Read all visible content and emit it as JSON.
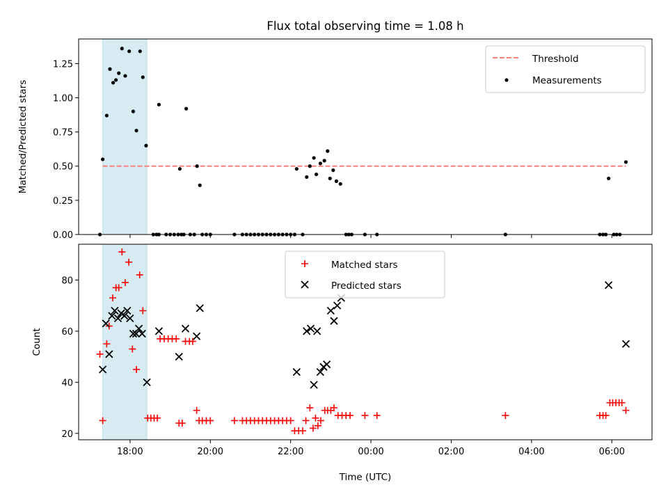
{
  "figure": {
    "title": "Flux total observing time = 1.08 h",
    "x_label": "Time (UTC)",
    "x_ticks": [
      {
        "value": 18,
        "label": "18:00"
      },
      {
        "value": 20,
        "label": "20:00"
      },
      {
        "value": 22,
        "label": "22:00"
      },
      {
        "value": 24,
        "label": "00:00"
      },
      {
        "value": 26,
        "label": "02:00"
      },
      {
        "value": 28,
        "label": "04:00"
      },
      {
        "value": 30,
        "label": "06:00"
      }
    ],
    "xlim": [
      16.72,
      31.0
    ],
    "highlight_span": [
      17.32,
      18.42
    ],
    "colors": {
      "highlight": "#add8e6",
      "threshold": "#ff7f7f",
      "measurements": "#000000",
      "matched": "#ff0000",
      "predicted": "#000000"
    }
  },
  "chart_data": [
    {
      "type": "scatter",
      "ylabel": "Matched/Predicted stars",
      "ylim": [
        0,
        1.43
      ],
      "y_ticks": [
        "0.00",
        "0.25",
        "0.50",
        "0.75",
        "1.00",
        "1.25"
      ],
      "legend_placement": "top-right",
      "threshold": {
        "name": "Threshold",
        "y": 0.5,
        "x_range": [
          17.32,
          30.35
        ]
      },
      "series": [
        {
          "name": "Measurements",
          "points": [
            [
              17.32,
              0.55
            ],
            [
              17.42,
              0.87
            ],
            [
              17.5,
              1.21
            ],
            [
              17.58,
              1.11
            ],
            [
              17.65,
              1.13
            ],
            [
              17.72,
              1.18
            ],
            [
              17.8,
              1.36
            ],
            [
              17.88,
              1.16
            ],
            [
              17.98,
              1.34
            ],
            [
              18.08,
              0.9
            ],
            [
              18.16,
              0.76
            ],
            [
              18.25,
              1.34
            ],
            [
              18.32,
              1.15
            ],
            [
              18.4,
              0.65
            ],
            [
              18.72,
              0.95
            ],
            [
              19.24,
              0.48
            ],
            [
              19.4,
              0.92
            ],
            [
              19.67,
              0.5
            ],
            [
              19.74,
              0.36
            ],
            [
              22.15,
              0.48
            ],
            [
              22.4,
              0.42
            ],
            [
              22.48,
              0.5
            ],
            [
              22.58,
              0.56
            ],
            [
              22.64,
              0.44
            ],
            [
              22.74,
              0.52
            ],
            [
              22.84,
              0.54
            ],
            [
              22.92,
              0.61
            ],
            [
              22.98,
              0.41
            ],
            [
              23.06,
              0.47
            ],
            [
              23.14,
              0.39
            ],
            [
              23.24,
              0.37
            ],
            [
              29.92,
              0.41
            ],
            [
              30.35,
              0.53
            ],
            [
              17.25,
              0
            ],
            [
              18.58,
              0
            ],
            [
              18.66,
              0
            ],
            [
              18.72,
              0
            ],
            [
              18.9,
              0
            ],
            [
              19.0,
              0
            ],
            [
              19.1,
              0
            ],
            [
              19.2,
              0
            ],
            [
              19.28,
              0
            ],
            [
              19.34,
              0
            ],
            [
              19.5,
              0
            ],
            [
              19.6,
              0
            ],
            [
              19.8,
              0
            ],
            [
              19.9,
              0
            ],
            [
              20.0,
              0
            ],
            [
              20.6,
              0
            ],
            [
              20.8,
              0
            ],
            [
              20.9,
              0
            ],
            [
              21.0,
              0
            ],
            [
              21.1,
              0
            ],
            [
              21.2,
              0
            ],
            [
              21.3,
              0
            ],
            [
              21.4,
              0
            ],
            [
              21.5,
              0
            ],
            [
              21.6,
              0
            ],
            [
              21.7,
              0
            ],
            [
              21.8,
              0
            ],
            [
              21.9,
              0
            ],
            [
              22.0,
              0
            ],
            [
              22.1,
              0
            ],
            [
              22.3,
              0
            ],
            [
              23.38,
              0
            ],
            [
              23.45,
              0
            ],
            [
              23.52,
              0
            ],
            [
              23.85,
              0
            ],
            [
              24.15,
              0
            ],
            [
              27.35,
              0
            ],
            [
              29.7,
              0
            ],
            [
              29.78,
              0
            ],
            [
              29.85,
              0
            ],
            [
              30.05,
              0
            ],
            [
              30.12,
              0
            ],
            [
              30.2,
              0
            ]
          ]
        }
      ]
    },
    {
      "type": "scatter",
      "ylabel": "Count",
      "ylim": [
        17.5,
        94
      ],
      "y_ticks": [
        "20",
        "40",
        "60",
        "80"
      ],
      "legend_placement": "top-center",
      "series": [
        {
          "name": "Matched stars",
          "marker": "plus",
          "points": [
            [
              17.25,
              51
            ],
            [
              17.32,
              25
            ],
            [
              17.42,
              55
            ],
            [
              17.48,
              62
            ],
            [
              17.57,
              73
            ],
            [
              17.65,
              77
            ],
            [
              17.72,
              77
            ],
            [
              17.8,
              91
            ],
            [
              17.88,
              79
            ],
            [
              17.97,
              87
            ],
            [
              18.06,
              53
            ],
            [
              18.16,
              45
            ],
            [
              18.24,
              82
            ],
            [
              18.32,
              68
            ],
            [
              18.44,
              26
            ],
            [
              18.52,
              26
            ],
            [
              18.6,
              26
            ],
            [
              18.68,
              26
            ],
            [
              18.75,
              57
            ],
            [
              18.85,
              57
            ],
            [
              18.95,
              57
            ],
            [
              19.05,
              57
            ],
            [
              19.15,
              57
            ],
            [
              19.22,
              24
            ],
            [
              19.3,
              24
            ],
            [
              19.38,
              56
            ],
            [
              19.48,
              56
            ],
            [
              19.56,
              56
            ],
            [
              19.66,
              29
            ],
            [
              19.72,
              25
            ],
            [
              19.8,
              25
            ],
            [
              19.9,
              25
            ],
            [
              20.0,
              25
            ],
            [
              20.6,
              25
            ],
            [
              20.8,
              25
            ],
            [
              20.9,
              25
            ],
            [
              21.0,
              25
            ],
            [
              21.1,
              25
            ],
            [
              21.2,
              25
            ],
            [
              21.3,
              25
            ],
            [
              21.4,
              25
            ],
            [
              21.5,
              25
            ],
            [
              21.6,
              25
            ],
            [
              21.7,
              25
            ],
            [
              21.8,
              25
            ],
            [
              21.9,
              25
            ],
            [
              22.0,
              25
            ],
            [
              22.1,
              21
            ],
            [
              22.2,
              21
            ],
            [
              22.3,
              21
            ],
            [
              22.38,
              25
            ],
            [
              22.48,
              30
            ],
            [
              22.56,
              22
            ],
            [
              22.62,
              26
            ],
            [
              22.68,
              23
            ],
            [
              22.75,
              25
            ],
            [
              22.85,
              29
            ],
            [
              22.92,
              29
            ],
            [
              23.0,
              29
            ],
            [
              23.08,
              30
            ],
            [
              23.18,
              27
            ],
            [
              23.28,
              27
            ],
            [
              23.38,
              27
            ],
            [
              23.48,
              27
            ],
            [
              23.85,
              27
            ],
            [
              24.15,
              27
            ],
            [
              27.35,
              27
            ],
            [
              29.7,
              27
            ],
            [
              29.78,
              27
            ],
            [
              29.85,
              27
            ],
            [
              29.95,
              32
            ],
            [
              30.02,
              32
            ],
            [
              30.1,
              32
            ],
            [
              30.18,
              32
            ],
            [
              30.25,
              32
            ],
            [
              30.35,
              29
            ]
          ]
        },
        {
          "name": "Predicted stars",
          "marker": "x",
          "points": [
            [
              17.32,
              45
            ],
            [
              17.4,
              63
            ],
            [
              17.48,
              51
            ],
            [
              17.55,
              66
            ],
            [
              17.62,
              68
            ],
            [
              17.7,
              65
            ],
            [
              17.78,
              67
            ],
            [
              17.86,
              66
            ],
            [
              17.93,
              68
            ],
            [
              18.0,
              65
            ],
            [
              18.08,
              59
            ],
            [
              18.15,
              59
            ],
            [
              18.22,
              61
            ],
            [
              18.3,
              59
            ],
            [
              18.42,
              40
            ],
            [
              18.72,
              60
            ],
            [
              19.22,
              50
            ],
            [
              19.38,
              61
            ],
            [
              19.66,
              58
            ],
            [
              19.74,
              69
            ],
            [
              22.15,
              44
            ],
            [
              22.4,
              60
            ],
            [
              22.5,
              61
            ],
            [
              22.58,
              39
            ],
            [
              22.66,
              60
            ],
            [
              22.74,
              44
            ],
            [
              22.82,
              46
            ],
            [
              22.9,
              47
            ],
            [
              23.0,
              68
            ],
            [
              23.08,
              64
            ],
            [
              23.16,
              70
            ],
            [
              23.26,
              73
            ],
            [
              29.92,
              78
            ],
            [
              30.35,
              55
            ]
          ]
        }
      ]
    }
  ]
}
